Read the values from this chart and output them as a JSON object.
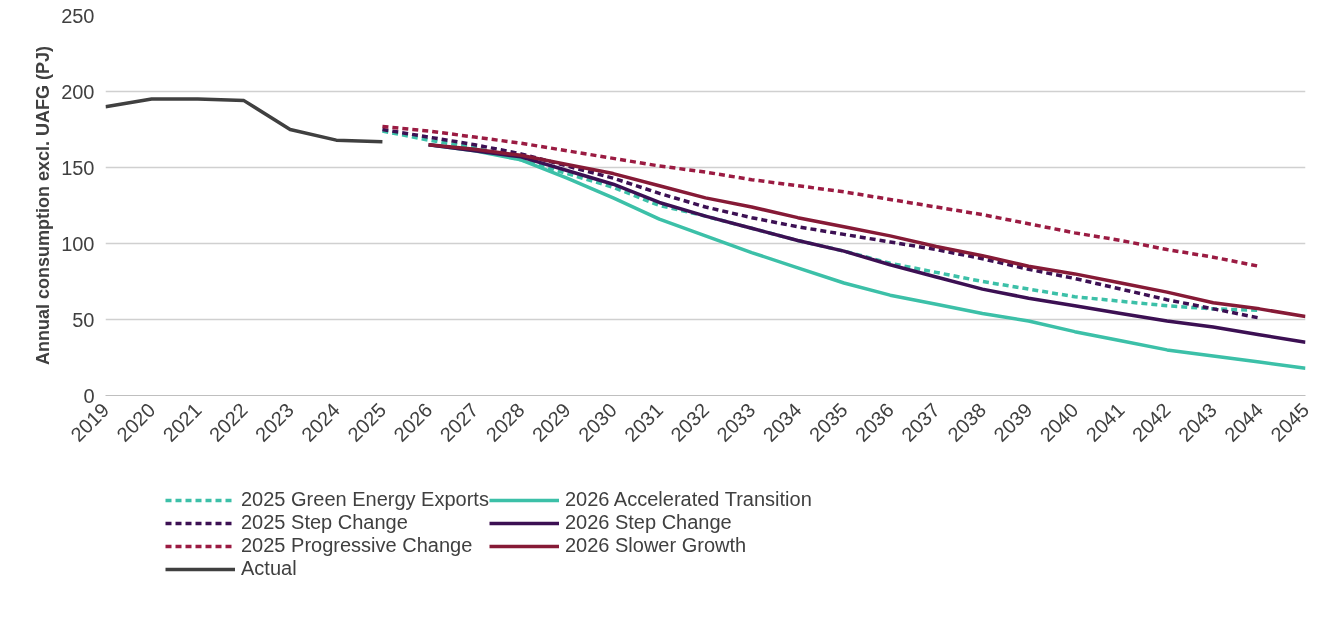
{
  "chart_data": {
    "type": "line",
    "ylabel": "Annual consumption excl. UAFG (PJ)",
    "xlim": [
      2019,
      2045
    ],
    "xticks": [
      2019,
      2020,
      2021,
      2022,
      2023,
      2024,
      2025,
      2026,
      2027,
      2028,
      2029,
      2030,
      2031,
      2032,
      2033,
      2034,
      2035,
      2036,
      2037,
      2038,
      2039,
      2040,
      2041,
      2042,
      2043,
      2044,
      2045
    ],
    "ylim": [
      0,
      250
    ],
    "yticks": [
      0,
      50,
      100,
      150,
      200,
      250
    ],
    "grid": "y",
    "legend": "bottom",
    "marker": "none",
    "series": [
      {
        "name": "2025 Green Energy Exports",
        "color": "#3cc0a8",
        "line_style": "dashed",
        "x": [
          2025,
          2026,
          2027,
          2028,
          2029,
          2030,
          2031,
          2032,
          2033,
          2034,
          2035,
          2036,
          2037,
          2038,
          2039,
          2040,
          2041,
          2042,
          2043,
          2044
        ],
        "values": [
          174,
          168,
          163,
          155,
          146,
          137,
          125,
          118,
          110,
          102,
          95,
          87,
          81,
          75,
          70,
          65,
          62,
          59,
          57,
          56
        ]
      },
      {
        "name": "2026 Accelerated Transition",
        "color": "#3cc0a8",
        "line_style": "solid",
        "x": [
          2026,
          2027,
          2028,
          2029,
          2030,
          2031,
          2032,
          2033,
          2034,
          2035,
          2036,
          2037,
          2038,
          2039,
          2040,
          2041,
          2042,
          2043,
          2044,
          2045
        ],
        "values": [
          165,
          161,
          155,
          143,
          130,
          116,
          105,
          94,
          84,
          74,
          66,
          60,
          54,
          49,
          42,
          36,
          30,
          26,
          22,
          18
        ]
      },
      {
        "name": "2025 Step Change",
        "color": "#3c1053",
        "line_style": "dashed",
        "x": [
          2025,
          2026,
          2027,
          2028,
          2029,
          2030,
          2031,
          2032,
          2033,
          2034,
          2035,
          2036,
          2037,
          2038,
          2039,
          2040,
          2041,
          2042,
          2043,
          2044
        ],
        "values": [
          175,
          170,
          165,
          159,
          151,
          143,
          133,
          124,
          117,
          111,
          106,
          101,
          96,
          90,
          83,
          77,
          70,
          63,
          57,
          51
        ]
      },
      {
        "name": "2026 Step Change",
        "color": "#3c1053",
        "line_style": "solid",
        "x": [
          2026,
          2027,
          2028,
          2029,
          2030,
          2031,
          2032,
          2033,
          2034,
          2035,
          2036,
          2037,
          2038,
          2039,
          2040,
          2041,
          2042,
          2043,
          2044,
          2045
        ],
        "values": [
          165,
          161,
          157,
          148,
          139,
          127,
          118,
          110,
          102,
          95,
          86,
          78,
          70,
          64,
          59,
          54,
          49,
          45,
          40,
          35
        ]
      },
      {
        "name": "2025 Progressive Change",
        "color": "#9b1b42",
        "line_style": "dashed",
        "x": [
          2025,
          2026,
          2027,
          2028,
          2029,
          2030,
          2031,
          2032,
          2033,
          2034,
          2035,
          2036,
          2037,
          2038,
          2039,
          2040,
          2041,
          2042,
          2043,
          2044
        ],
        "values": [
          177,
          174,
          170,
          166,
          161,
          156,
          151,
          147,
          142,
          138,
          134,
          129,
          124,
          119,
          113,
          107,
          102,
          96,
          91,
          85
        ]
      },
      {
        "name": "2026 Slower Growth",
        "color": "#861a36",
        "line_style": "solid",
        "x": [
          2026,
          2027,
          2028,
          2029,
          2030,
          2031,
          2032,
          2033,
          2034,
          2035,
          2036,
          2037,
          2038,
          2039,
          2040,
          2041,
          2042,
          2043,
          2044,
          2045
        ],
        "values": [
          165,
          162,
          158,
          152,
          146,
          138,
          130,
          124,
          117,
          111,
          105,
          98,
          92,
          85,
          80,
          74,
          68,
          61,
          57,
          52
        ]
      },
      {
        "name": "Actual",
        "color": "#404040",
        "line_style": "solid",
        "x": [
          2019,
          2020,
          2021,
          2022,
          2023,
          2024,
          2025
        ],
        "values": [
          190,
          195,
          195,
          194,
          175,
          168,
          167
        ]
      }
    ]
  }
}
